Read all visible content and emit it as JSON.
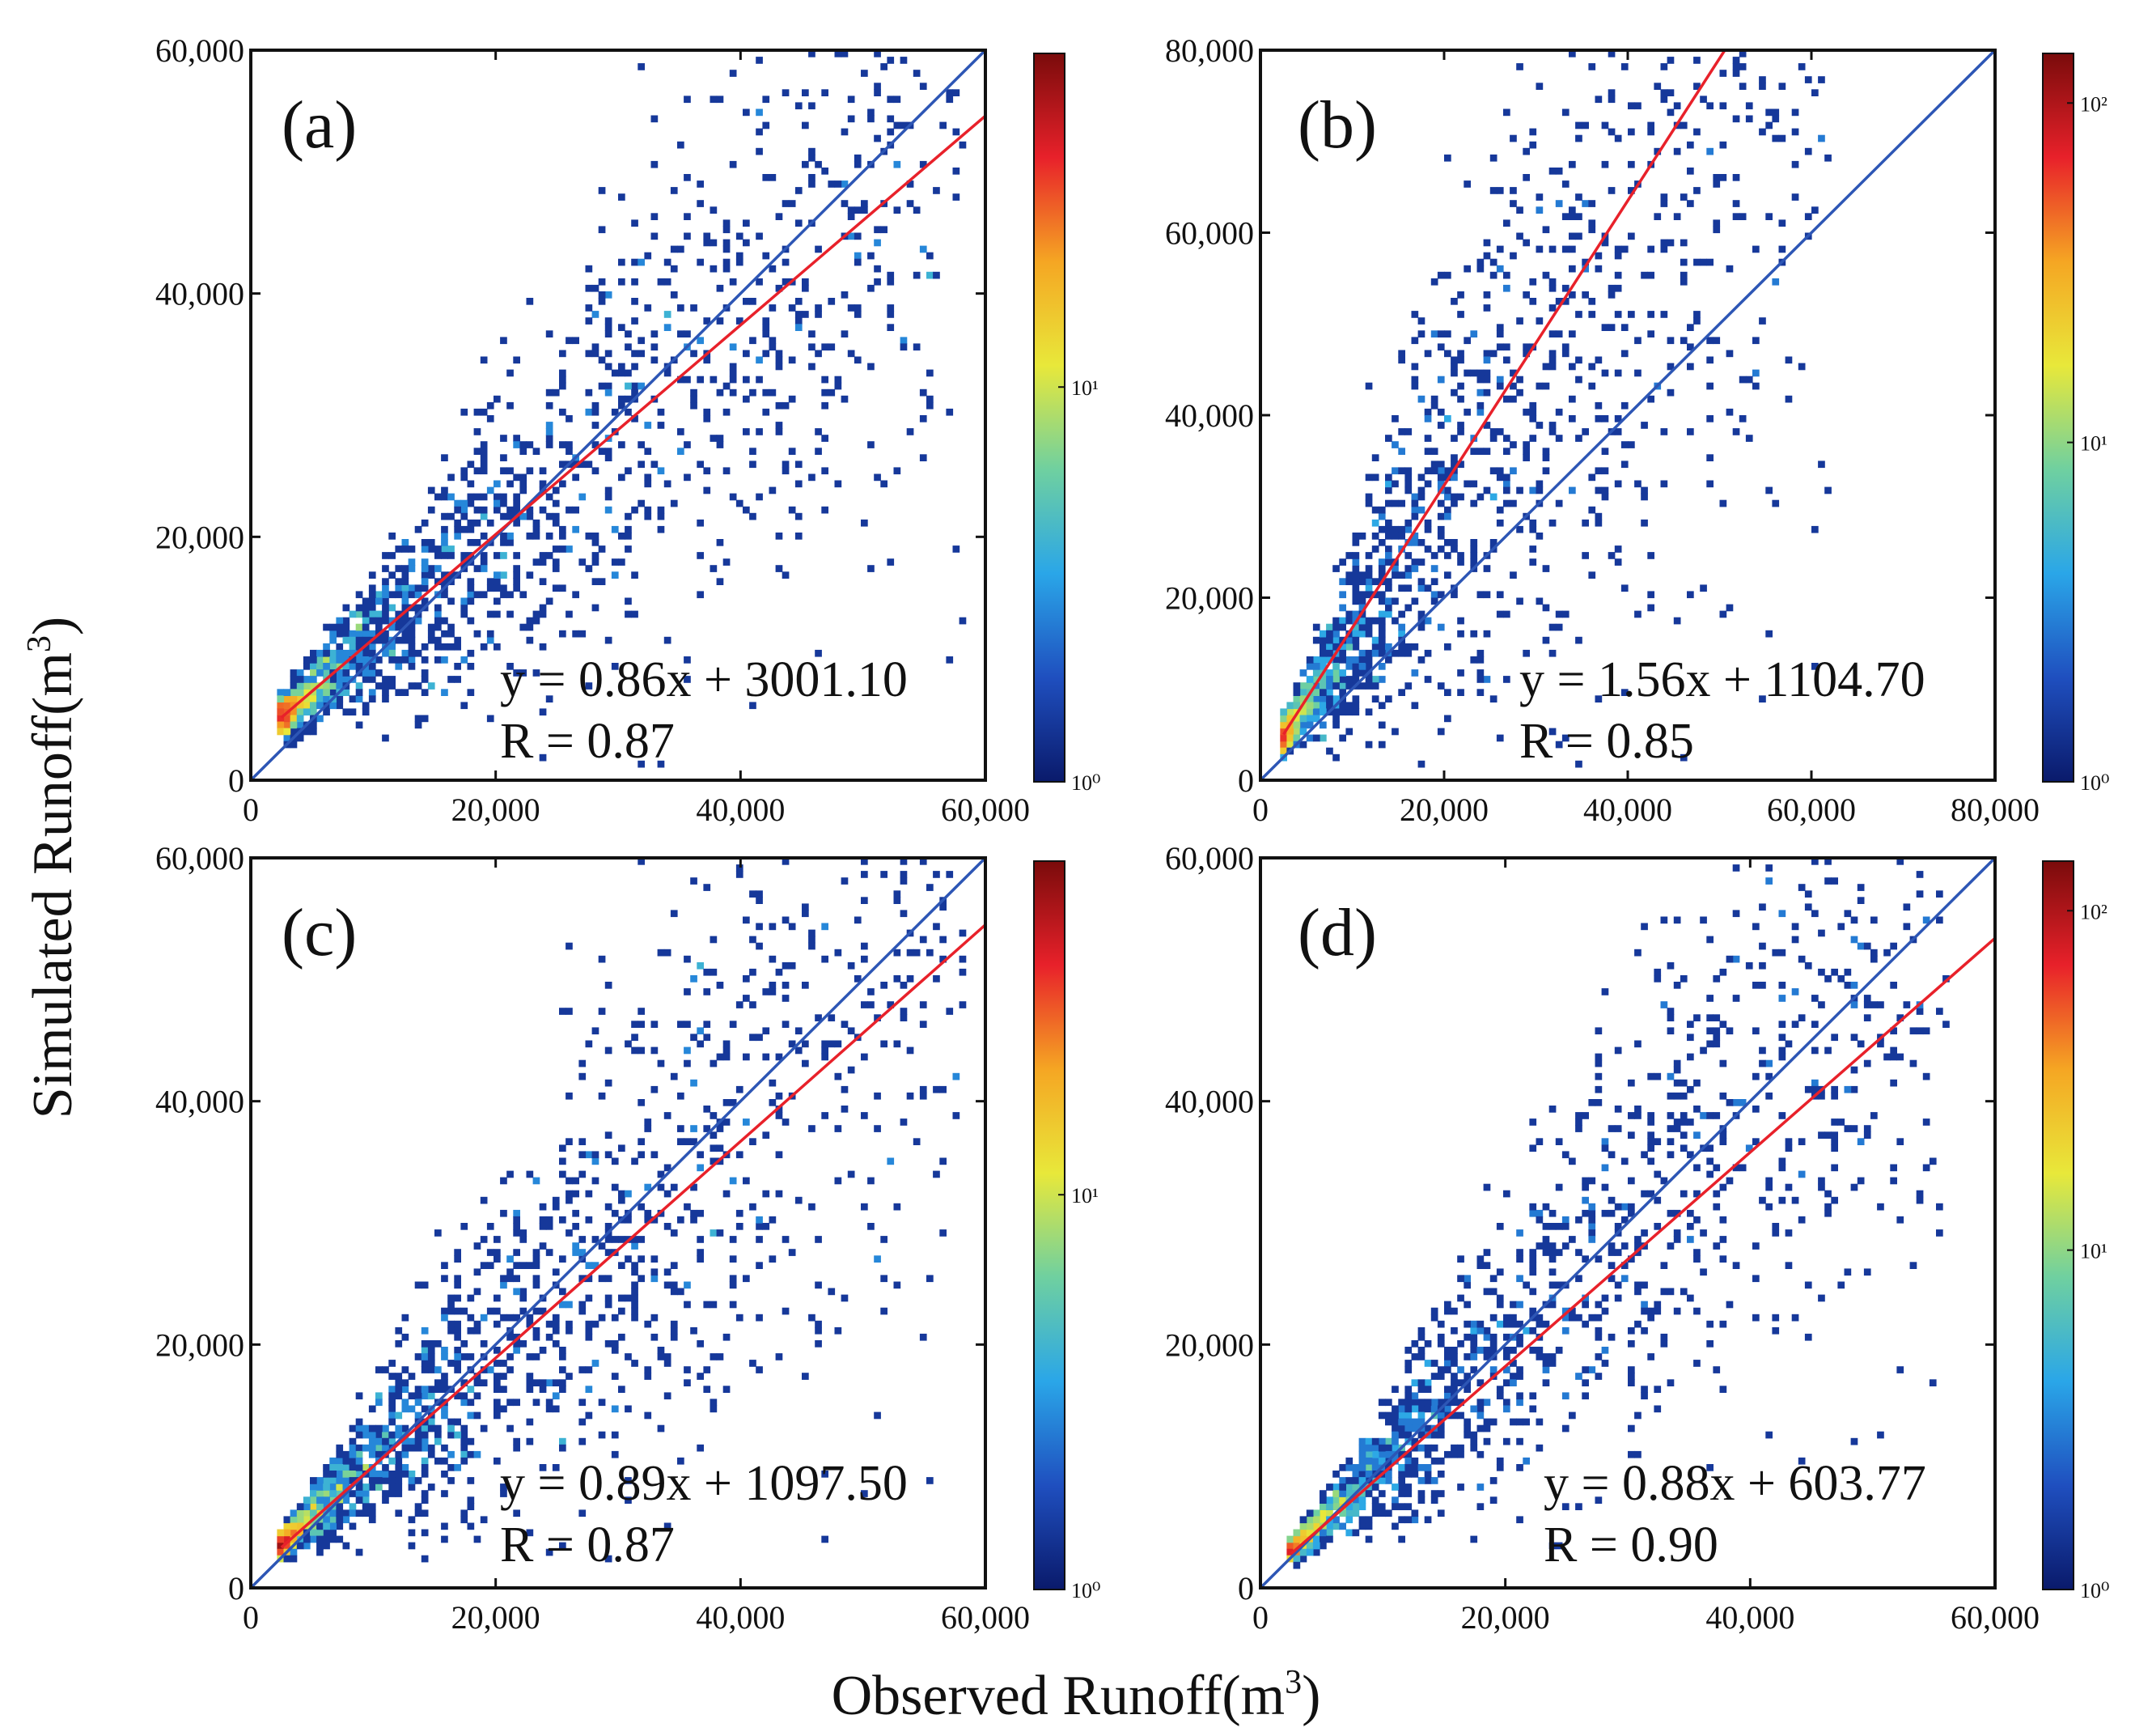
{
  "figure": {
    "ylabel": "Simulated Runoff(m",
    "ylabel_sup": "3",
    "ylabel_close": ")",
    "xlabel": "Observed Runoff(m",
    "xlabel_sup": "3",
    "xlabel_close": ")"
  },
  "colors": {
    "axis": "#111111",
    "identity_line": "#2d56b5",
    "fit_line": "#e8212a",
    "colormap": [
      "#0a1a6b",
      "#1f4fbf",
      "#2aa6e8",
      "#6fd0a0",
      "#e8e83a",
      "#f5a623",
      "#e8212a",
      "#7a0b0b"
    ]
  },
  "chart_data": [
    {
      "type": "heatmap",
      "panel": "(a)",
      "xlim": [
        0,
        60000
      ],
      "ylim": [
        0,
        60000
      ],
      "xticks": [
        "0",
        "20,000",
        "40,000",
        "60,000"
      ],
      "yticks": [
        "0",
        "20,000",
        "40,000",
        "60,000"
      ],
      "xtick_values": [
        0,
        20000,
        40000,
        60000
      ],
      "ytick_values": [
        0,
        20000,
        40000,
        60000
      ],
      "fit": {
        "slope": 0.86,
        "intercept": 3001.1,
        "x_start": 2500,
        "x_end": 60000
      },
      "identity": {
        "x_start": 0,
        "x_end": 60000
      },
      "equation": "y = 0.86x + 3001.10",
      "r_label": "R = 0.87",
      "colorbar": {
        "scale": "log",
        "ticks": [
          "10⁰",
          "10¹"
        ],
        "tick_values": [
          1,
          10
        ],
        "max": 70
      },
      "cloud": {
        "seed": 11,
        "n": 1700,
        "center_slope": 0.86,
        "center_intercept": 3001,
        "spread": 0.32,
        "xmax": 58000
      }
    },
    {
      "type": "heatmap",
      "panel": "(b)",
      "xlim": [
        0,
        80000
      ],
      "ylim": [
        0,
        80000
      ],
      "xticks": [
        "0",
        "20,000",
        "40,000",
        "60,000",
        "80,000"
      ],
      "yticks": [
        "0",
        "20,000",
        "40,000",
        "60,000",
        "80,000"
      ],
      "xtick_values": [
        0,
        20000,
        40000,
        60000,
        80000
      ],
      "ytick_values": [
        0,
        20000,
        40000,
        60000,
        80000
      ],
      "fit": {
        "slope": 1.56,
        "intercept": 1104.7,
        "x_start": 2500,
        "x_end": 50600
      },
      "identity": {
        "x_start": 0,
        "x_end": 80000
      },
      "equation": "y = 1.56x + 1104.70",
      "r_label": "R = 0.85",
      "colorbar": {
        "scale": "log",
        "ticks": [
          "10⁰",
          "10¹",
          "10²"
        ],
        "tick_values": [
          1,
          10,
          100
        ],
        "max": 140
      },
      "cloud": {
        "seed": 23,
        "n": 1700,
        "center_slope": 1.45,
        "center_intercept": 1104,
        "spread": 0.42,
        "xmax": 62000
      }
    },
    {
      "type": "heatmap",
      "panel": "(c)",
      "xlim": [
        0,
        60000
      ],
      "ylim": [
        0,
        60000
      ],
      "xticks": [
        "0",
        "20,000",
        "40,000",
        "60,000"
      ],
      "yticks": [
        "0",
        "20,000",
        "40,000",
        "60,000"
      ],
      "xtick_values": [
        0,
        20000,
        40000,
        60000
      ],
      "ytick_values": [
        0,
        20000,
        40000,
        60000
      ],
      "fit": {
        "slope": 0.89,
        "intercept": 1097.5,
        "x_start": 2500,
        "x_end": 60000
      },
      "identity": {
        "x_start": 0,
        "x_end": 60000
      },
      "equation": "y = 0.89x + 1097.50",
      "r_label": "R = 0.87",
      "colorbar": {
        "scale": "log",
        "ticks": [
          "10⁰",
          "10¹"
        ],
        "tick_values": [
          1,
          10
        ],
        "max": 70
      },
      "cloud": {
        "seed": 37,
        "n": 1700,
        "center_slope": 0.95,
        "center_intercept": 1097,
        "spread": 0.34,
        "xmax": 58000
      }
    },
    {
      "type": "heatmap",
      "panel": "(d)",
      "xlim": [
        0,
        60000
      ],
      "ylim": [
        0,
        60000
      ],
      "xticks": [
        "0",
        "20,000",
        "40,000",
        "60,000"
      ],
      "yticks": [
        "0",
        "20,000",
        "40,000",
        "60,000"
      ],
      "xtick_values": [
        0,
        20000,
        40000,
        60000
      ],
      "ytick_values": [
        0,
        20000,
        40000,
        60000
      ],
      "fit": {
        "slope": 0.88,
        "intercept": 603.77,
        "x_start": 2500,
        "x_end": 60000
      },
      "identity": {
        "x_start": 0,
        "x_end": 60000
      },
      "equation": "y = 0.88x + 603.77",
      "r_label": "R = 0.90",
      "colorbar": {
        "scale": "log",
        "ticks": [
          "10⁰",
          "10¹",
          "10²"
        ],
        "tick_values": [
          1,
          10,
          100
        ],
        "max": 140
      },
      "cloud": {
        "seed": 53,
        "n": 1700,
        "center_slope": 0.98,
        "center_intercept": 603,
        "spread": 0.3,
        "xmax": 56000
      }
    }
  ]
}
